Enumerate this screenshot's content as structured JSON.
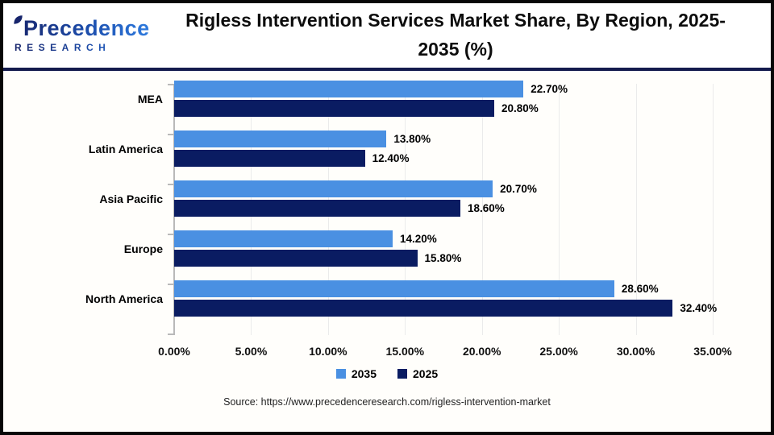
{
  "logo": {
    "text": "Precedence",
    "subtext": "RESEARCH"
  },
  "header": {
    "title_line1": "Rigless Intervention Services Market Share, By Region, 2025-",
    "title_line2": "2035 (%)"
  },
  "chart_data": {
    "type": "bar",
    "orientation": "horizontal",
    "title": "Rigless Intervention Services Market Share, By Region, 2025-2035 (%)",
    "categories": [
      "MEA",
      "Latin America",
      "Asia Pacific",
      "Europe",
      "North America"
    ],
    "series": [
      {
        "name": "2035",
        "color": "#4a90e2",
        "values": [
          22.7,
          13.8,
          20.7,
          14.2,
          28.6
        ],
        "labels": [
          "22.70%",
          "13.80%",
          "20.70%",
          "14.20%",
          "28.60%"
        ]
      },
      {
        "name": "2025",
        "color": "#0a1c62",
        "values": [
          20.8,
          12.4,
          18.6,
          15.8,
          32.4
        ],
        "labels": [
          "20.80%",
          "12.40%",
          "18.60%",
          "15.80%",
          "32.40%"
        ]
      }
    ],
    "xlim": [
      0,
      35
    ],
    "x_tick_labels": [
      "0.00%",
      "5.00%",
      "10.00%",
      "15.00%",
      "20.00%",
      "25.00%",
      "30.00%",
      "35.00%"
    ],
    "grid": true,
    "legend_position": "bottom",
    "legend": [
      "2035",
      "2025"
    ]
  },
  "colors": {
    "series_2035": "#4a90e2",
    "series_2025": "#0a1c62",
    "divider": "#141b4d",
    "axis": "#b9b9b9",
    "gridline": "#ebebeb"
  },
  "source": "Source: https://www.precedenceresearch.com/rigless-intervention-market"
}
